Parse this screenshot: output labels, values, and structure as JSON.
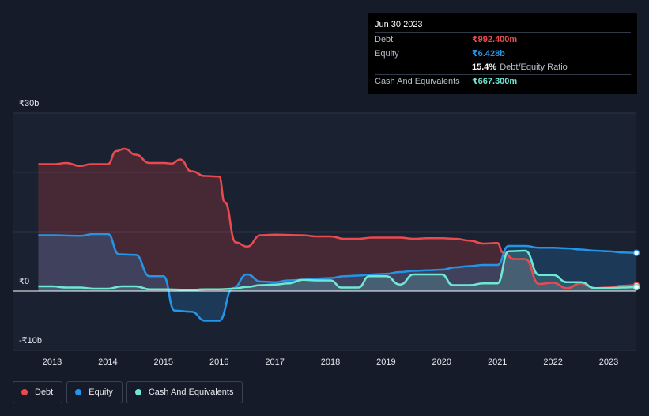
{
  "chart_data": {
    "type": "area",
    "y_unit_prefix": "₹",
    "ylim": [
      -10,
      30
    ],
    "xlim": [
      2012.6,
      2023.5
    ],
    "x_ticks": [
      2013,
      2014,
      2015,
      2016,
      2017,
      2018,
      2019,
      2020,
      2021,
      2022,
      2023
    ],
    "x_tick_labels": [
      "2013",
      "2014",
      "2015",
      "2016",
      "2017",
      "2018",
      "2019",
      "2020",
      "2021",
      "2022",
      "2023"
    ],
    "y_tick_labels": [
      {
        "value": 30,
        "label": "₹30b"
      },
      {
        "value": 0,
        "label": "₹0"
      },
      {
        "value": -10,
        "label": "-₹10b"
      }
    ],
    "gridlines": [
      30,
      20,
      10,
      0,
      -10
    ],
    "series": [
      {
        "name": "Debt",
        "color": "#e84a4f",
        "points": [
          [
            2012.75,
            21.4
          ],
          [
            2012.9,
            21.4
          ],
          [
            2013.05,
            21.4
          ],
          [
            2013.25,
            21.6
          ],
          [
            2013.5,
            21.1
          ],
          [
            2013.7,
            21.4
          ],
          [
            2014.0,
            21.4
          ],
          [
            2014.15,
            23.6
          ],
          [
            2014.3,
            24.0
          ],
          [
            2014.5,
            23.0
          ],
          [
            2014.75,
            21.6
          ],
          [
            2015.0,
            21.6
          ],
          [
            2015.15,
            21.5
          ],
          [
            2015.3,
            22.2
          ],
          [
            2015.5,
            20.2
          ],
          [
            2015.75,
            19.4
          ],
          [
            2016.0,
            19.3
          ],
          [
            2016.1,
            15.0
          ],
          [
            2016.3,
            8.2
          ],
          [
            2016.5,
            7.5
          ],
          [
            2016.75,
            9.4
          ],
          [
            2017.0,
            9.5
          ],
          [
            2017.5,
            9.4
          ],
          [
            2017.75,
            9.2
          ],
          [
            2018.0,
            9.2
          ],
          [
            2018.25,
            8.8
          ],
          [
            2018.5,
            8.8
          ],
          [
            2018.75,
            9.0
          ],
          [
            2019.0,
            9.0
          ],
          [
            2019.25,
            9.0
          ],
          [
            2019.5,
            8.8
          ],
          [
            2019.75,
            8.9
          ],
          [
            2020.0,
            8.9
          ],
          [
            2020.25,
            8.8
          ],
          [
            2020.5,
            8.5
          ],
          [
            2020.75,
            8.0
          ],
          [
            2021.0,
            8.1
          ],
          [
            2021.1,
            6.5
          ],
          [
            2021.3,
            5.4
          ],
          [
            2021.5,
            5.4
          ],
          [
            2021.75,
            1.2
          ],
          [
            2022.0,
            1.4
          ],
          [
            2022.25,
            0.5
          ],
          [
            2022.5,
            1.3
          ],
          [
            2022.75,
            0.5
          ],
          [
            2023.0,
            0.6
          ],
          [
            2023.25,
            0.9
          ],
          [
            2023.5,
            0.99
          ]
        ]
      },
      {
        "name": "Equity",
        "color": "#2394e6",
        "points": [
          [
            2012.75,
            9.4
          ],
          [
            2013.0,
            9.4
          ],
          [
            2013.5,
            9.3
          ],
          [
            2013.75,
            9.6
          ],
          [
            2014.0,
            9.6
          ],
          [
            2014.2,
            6.2
          ],
          [
            2014.5,
            6.1
          ],
          [
            2014.75,
            2.5
          ],
          [
            2015.0,
            2.5
          ],
          [
            2015.2,
            -3.3
          ],
          [
            2015.5,
            -3.5
          ],
          [
            2015.75,
            -5.0
          ],
          [
            2016.0,
            -5.0
          ],
          [
            2016.25,
            0.5
          ],
          [
            2016.5,
            2.8
          ],
          [
            2016.75,
            1.6
          ],
          [
            2017.0,
            1.5
          ],
          [
            2017.25,
            1.8
          ],
          [
            2017.5,
            1.9
          ],
          [
            2017.75,
            2.1
          ],
          [
            2018.0,
            2.2
          ],
          [
            2018.25,
            2.5
          ],
          [
            2018.5,
            2.6
          ],
          [
            2018.75,
            2.8
          ],
          [
            2019.0,
            2.9
          ],
          [
            2019.25,
            3.2
          ],
          [
            2019.5,
            3.4
          ],
          [
            2019.75,
            3.5
          ],
          [
            2020.0,
            3.6
          ],
          [
            2020.25,
            4.0
          ],
          [
            2020.5,
            4.2
          ],
          [
            2020.75,
            4.4
          ],
          [
            2021.0,
            4.4
          ],
          [
            2021.2,
            7.6
          ],
          [
            2021.5,
            7.6
          ],
          [
            2021.75,
            7.3
          ],
          [
            2022.0,
            7.3
          ],
          [
            2022.25,
            7.2
          ],
          [
            2022.5,
            7.0
          ],
          [
            2022.75,
            6.8
          ],
          [
            2023.0,
            6.7
          ],
          [
            2023.25,
            6.5
          ],
          [
            2023.5,
            6.43
          ]
        ]
      },
      {
        "name": "Cash And Equivalents",
        "color": "#6ee8d4",
        "points": [
          [
            2012.75,
            0.8
          ],
          [
            2013.0,
            0.8
          ],
          [
            2013.25,
            0.6
          ],
          [
            2013.5,
            0.6
          ],
          [
            2013.75,
            0.4
          ],
          [
            2014.0,
            0.4
          ],
          [
            2014.25,
            0.8
          ],
          [
            2014.5,
            0.8
          ],
          [
            2014.75,
            0.3
          ],
          [
            2015.0,
            0.3
          ],
          [
            2015.5,
            0.2
          ],
          [
            2015.75,
            0.3
          ],
          [
            2016.0,
            0.3
          ],
          [
            2016.25,
            0.4
          ],
          [
            2016.5,
            0.7
          ],
          [
            2016.75,
            1.0
          ],
          [
            2017.0,
            1.1
          ],
          [
            2017.25,
            1.3
          ],
          [
            2017.5,
            1.9
          ],
          [
            2017.75,
            1.8
          ],
          [
            2018.0,
            1.8
          ],
          [
            2018.2,
            0.6
          ],
          [
            2018.5,
            0.6
          ],
          [
            2018.7,
            2.5
          ],
          [
            2019.0,
            2.5
          ],
          [
            2019.25,
            1.1
          ],
          [
            2019.5,
            2.8
          ],
          [
            2019.75,
            2.8
          ],
          [
            2020.0,
            2.8
          ],
          [
            2020.2,
            1.0
          ],
          [
            2020.5,
            1.0
          ],
          [
            2020.75,
            1.3
          ],
          [
            2021.0,
            1.3
          ],
          [
            2021.2,
            6.7
          ],
          [
            2021.5,
            6.8
          ],
          [
            2021.75,
            2.7
          ],
          [
            2022.0,
            2.7
          ],
          [
            2022.25,
            1.5
          ],
          [
            2022.5,
            1.5
          ],
          [
            2022.75,
            0.5
          ],
          [
            2023.0,
            0.5
          ],
          [
            2023.25,
            0.6
          ],
          [
            2023.5,
            0.67
          ]
        ]
      }
    ]
  },
  "tooltip": {
    "date": "Jun 30 2023",
    "debt_label": "Debt",
    "debt_value": "₹992.400m",
    "equity_label": "Equity",
    "equity_value": "₹6.428b",
    "ratio_value": "15.4%",
    "ratio_label": "Debt/Equity Ratio",
    "cash_label": "Cash And Equivalents",
    "cash_value": "₹667.300m"
  },
  "legend": {
    "items": [
      {
        "label": "Debt",
        "color": "#e84a4f"
      },
      {
        "label": "Equity",
        "color": "#2394e6"
      },
      {
        "label": "Cash And Equivalents",
        "color": "#6ee8d4"
      }
    ]
  }
}
